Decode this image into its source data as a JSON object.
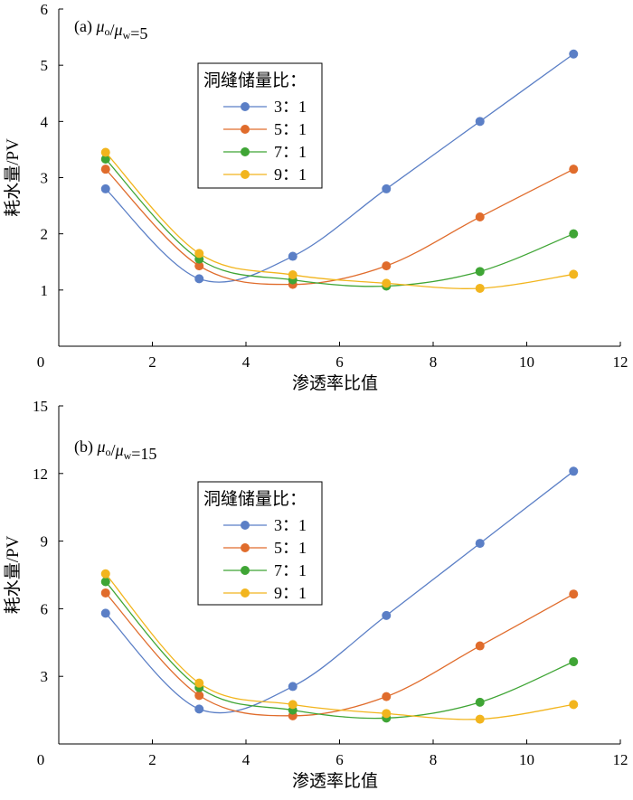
{
  "chart_data": [
    {
      "type": "line",
      "panel_label": "(a) ",
      "ratio_label": {
        "num": "μ",
        "num_sub": "o",
        "slash": "/",
        "den": "μ",
        "den_sub": "w",
        "value": "=5"
      },
      "xlabel": "渗透率比值",
      "ylabel": "耗水量/PV",
      "xlim": [
        0,
        12
      ],
      "ylim": [
        0,
        6
      ],
      "xticks": [
        0,
        2,
        4,
        6,
        8,
        10,
        12
      ],
      "yticks": [
        0,
        1,
        2,
        3,
        4,
        5,
        6
      ],
      "x": [
        1,
        3,
        5,
        7,
        9,
        11
      ],
      "legend_title": "洞缝储量比：",
      "legend_placement": "upper-left-center",
      "grid": false,
      "series": [
        {
          "name": "3：1",
          "color": "#5B7FC6",
          "values": [
            2.8,
            1.2,
            1.6,
            2.8,
            4.0,
            5.2
          ]
        },
        {
          "name": "5：1",
          "color": "#E06C2C",
          "values": [
            3.15,
            1.43,
            1.1,
            1.43,
            2.3,
            3.15
          ]
        },
        {
          "name": "7：1",
          "color": "#3FA535",
          "values": [
            3.33,
            1.55,
            1.18,
            1.07,
            1.33,
            2.0
          ]
        },
        {
          "name": "9：1",
          "color": "#F2B51E",
          "values": [
            3.45,
            1.65,
            1.27,
            1.12,
            1.03,
            1.28
          ]
        }
      ]
    },
    {
      "type": "line",
      "panel_label": "(b) ",
      "ratio_label": {
        "num": "μ",
        "num_sub": "o",
        "slash": "/",
        "den": "μ",
        "den_sub": "w",
        "value": "=15"
      },
      "xlabel": "渗透率比值",
      "ylabel": "耗水量/PV",
      "xlim": [
        0,
        12
      ],
      "ylim": [
        0,
        15
      ],
      "xticks": [
        0,
        2,
        4,
        6,
        8,
        10,
        12
      ],
      "yticks": [
        0,
        3,
        6,
        9,
        12,
        15
      ],
      "x": [
        1,
        3,
        5,
        7,
        9,
        11
      ],
      "legend_title": "洞缝储量比：",
      "legend_placement": "upper-left-center",
      "grid": false,
      "series": [
        {
          "name": "3：1",
          "color": "#5B7FC6",
          "values": [
            5.8,
            1.55,
            2.55,
            5.7,
            8.9,
            12.1
          ]
        },
        {
          "name": "5：1",
          "color": "#E06C2C",
          "values": [
            6.7,
            2.15,
            1.25,
            2.1,
            4.35,
            6.65
          ]
        },
        {
          "name": "7：1",
          "color": "#3FA535",
          "values": [
            7.2,
            2.5,
            1.5,
            1.15,
            1.85,
            3.65
          ]
        },
        {
          "name": "9：1",
          "color": "#F2B51E",
          "values": [
            7.55,
            2.7,
            1.75,
            1.35,
            1.1,
            1.75
          ]
        }
      ]
    }
  ]
}
